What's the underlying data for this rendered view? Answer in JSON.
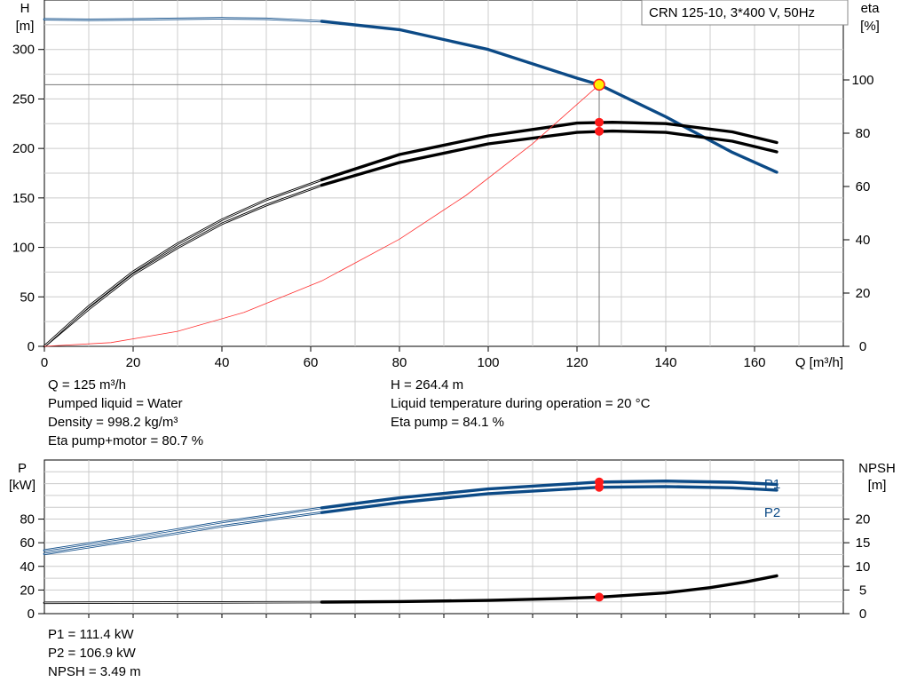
{
  "legend_title": "CRN 125-10, 3*400 V, 50Hz",
  "chart_data": [
    {
      "type": "line",
      "title": "",
      "xlabel": "Q [m³/h]",
      "xlim": [
        0,
        180
      ],
      "x_ticks": [
        "0",
        "20",
        "40",
        "60",
        "80",
        "100",
        "120",
        "140",
        "160"
      ],
      "y_left": {
        "label": [
          "H",
          "[m]"
        ],
        "lim": [
          0,
          350
        ],
        "ticks": [
          "0",
          "50",
          "100",
          "150",
          "200",
          "250",
          "300"
        ]
      },
      "y_right": {
        "label": [
          "eta",
          "[%]"
        ],
        "lim": [
          0,
          130
        ],
        "ticks": [
          "0",
          "20",
          "40",
          "60",
          "80",
          "100"
        ]
      },
      "grid": true,
      "series": [
        {
          "name": "",
          "axis": "left",
          "color": "#0c4a86",
          "weight": "thin",
          "x": [
            0,
            10,
            20,
            30,
            40,
            50,
            62.5
          ],
          "y": [
            330.5,
            330,
            330.4,
            331,
            331.5,
            331,
            328.5
          ]
        },
        {
          "name": "",
          "axis": "left",
          "color": "#0c4a86",
          "weight": "thick",
          "x": [
            62.5,
            80,
            100,
            120,
            125,
            140,
            155,
            165
          ],
          "y": [
            328.5,
            320,
            300,
            271,
            264.4,
            232,
            196,
            176
          ]
        },
        {
          "name": "",
          "axis": "right",
          "color": "#000000",
          "weight": "thin",
          "x": [
            0,
            10,
            20,
            30,
            40,
            50,
            62.5
          ],
          "y": [
            0,
            14,
            27,
            37,
            46,
            53,
            60.5
          ]
        },
        {
          "name": "",
          "axis": "right",
          "color": "#000000",
          "weight": "thick",
          "x": [
            62.5,
            80,
            100,
            120,
            128,
            140,
            155,
            165
          ],
          "y": [
            60.5,
            69,
            76,
            80.3,
            80.8,
            80.3,
            77,
            73
          ]
        },
        {
          "name": "",
          "axis": "right",
          "color": "#000000",
          "weight": "thin",
          "x": [
            0,
            10,
            20,
            30,
            40,
            50,
            62.5
          ],
          "y": [
            0,
            15,
            28,
            38.5,
            47.5,
            55,
            62.5
          ]
        },
        {
          "name": "",
          "axis": "right",
          "color": "#000000",
          "weight": "thick",
          "x": [
            62.5,
            80,
            100,
            120,
            128,
            140,
            155,
            165
          ],
          "y": [
            62.5,
            72,
            79,
            83.8,
            84.1,
            83.6,
            80.5,
            76.5
          ]
        },
        {
          "name": "",
          "axis": "left",
          "color": "#ff3030",
          "weight": "hair",
          "x": [
            0,
            15,
            30,
            45,
            62.5,
            80,
            95,
            110,
            125
          ],
          "y": [
            0,
            3.8,
            15.2,
            34.3,
            66.1,
            108.3,
            152.6,
            204.8,
            264.4
          ]
        }
      ],
      "operating_point": {
        "x": 125,
        "h": 264.4,
        "eta_pump": 84.1,
        "eta_total": 80.7
      }
    },
    {
      "type": "line",
      "title": "",
      "xlabel": "",
      "xlim": [
        0,
        180
      ],
      "y_left": {
        "label": [
          "P",
          "[kW]"
        ],
        "lim": [
          0,
          130
        ],
        "ticks": [
          "0",
          "20",
          "40",
          "60",
          "80"
        ]
      },
      "y_right": {
        "label": [
          "NPSH",
          "[m]"
        ],
        "lim": [
          0,
          32.5
        ],
        "ticks": [
          "0",
          "5",
          "10",
          "15",
          "20"
        ]
      },
      "grid": true,
      "series": [
        {
          "name": "P1",
          "axis": "left",
          "color": "#0c4a86",
          "weight": "thin",
          "x": [
            0,
            20,
            40,
            62.5
          ],
          "y": [
            53.5,
            65,
            77.5,
            89.5
          ]
        },
        {
          "name": "P1",
          "axis": "left",
          "color": "#0c4a86",
          "weight": "thick",
          "x": [
            62.5,
            80,
            100,
            125,
            140,
            155,
            165
          ],
          "y": [
            89.5,
            98,
            105.5,
            111.4,
            112.2,
            111.2,
            109.3
          ]
        },
        {
          "name": "P2",
          "axis": "left",
          "color": "#0c4a86",
          "weight": "thin",
          "x": [
            0,
            20,
            40,
            62.5
          ],
          "y": [
            50.5,
            62,
            74,
            85.5
          ]
        },
        {
          "name": "P2",
          "axis": "left",
          "color": "#0c4a86",
          "weight": "thick",
          "x": [
            62.5,
            80,
            100,
            125,
            140,
            155,
            165
          ],
          "y": [
            85.5,
            94,
            101.5,
            106.9,
            107.5,
            106.5,
            104.5
          ]
        },
        {
          "name": "",
          "axis": "right",
          "color": "#000000",
          "weight": "thin",
          "x": [
            0,
            62.5
          ],
          "y": [
            2.3,
            2.45
          ]
        },
        {
          "name": "",
          "axis": "right",
          "color": "#000000",
          "weight": "thick",
          "x": [
            62.5,
            80,
            100,
            115,
            125,
            140,
            150,
            158,
            165
          ],
          "y": [
            2.45,
            2.55,
            2.8,
            3.15,
            3.49,
            4.4,
            5.5,
            6.7,
            8.0
          ]
        }
      ],
      "operating_point": {
        "x": 125,
        "p1": 111.4,
        "p2": 106.9,
        "npsh": 3.49
      }
    }
  ],
  "info_top_left": [
    "Q = 125 m³/h",
    "Pumped liquid = Water",
    "Density = 998.2 kg/m³",
    "Eta pump+motor = 80.7 %"
  ],
  "info_top_right": [
    "H = 264.4 m",
    "Liquid temperature during operation = 20 °C",
    "Eta pump = 84.1 %"
  ],
  "info_bottom": [
    "P1 = 111.4 kW",
    "P2 = 106.9 kW",
    "NPSH = 3.49 m"
  ],
  "colors": {
    "blue": "#0c4a86",
    "black": "#000000",
    "red": "#ff1a1a",
    "marker_fill": "#ffee00",
    "grid": "#cccccc"
  }
}
